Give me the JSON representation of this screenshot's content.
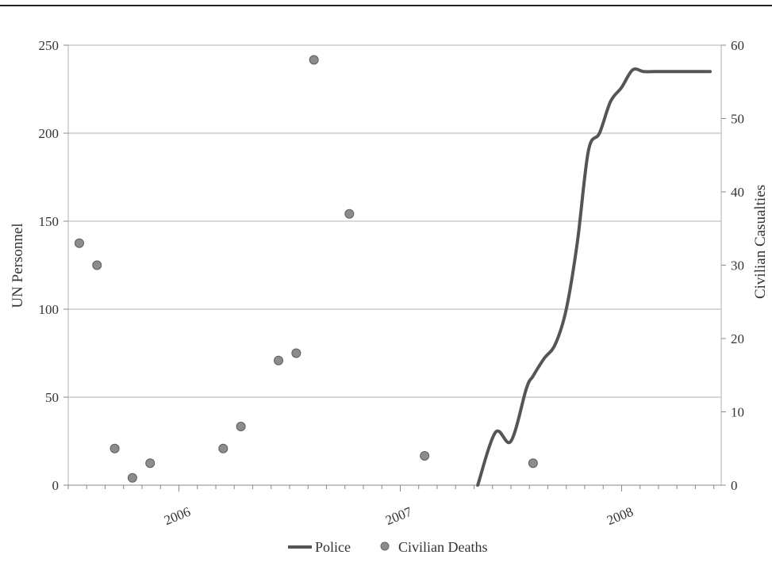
{
  "chart_data": {
    "type": "line",
    "y_left": {
      "label": "UN Personnel",
      "ylim": [
        0,
        250
      ],
      "ticks": [
        "0",
        "50",
        "100",
        "150",
        "200",
        "250"
      ]
    },
    "y_right": {
      "label": "Civilian Casualties",
      "ylim": [
        0,
        60
      ],
      "ticks": [
        "0",
        "10",
        "20",
        "30",
        "40",
        "50",
        "60"
      ]
    },
    "x": {
      "ticks": [
        {
          "label": "2006",
          "value": 2006.0
        },
        {
          "label": "2007",
          "value": 2007.0
        },
        {
          "label": "2008",
          "value": 2008.0
        }
      ],
      "xlim": [
        2005.5,
        2008.45
      ]
    },
    "grid": true,
    "legend_position": "bottom",
    "colors": {
      "line": "#555555",
      "marker": "#8c8c8c",
      "grid": "#b0b0b0"
    },
    "series": [
      {
        "name": "Police",
        "type": "line",
        "axis": "left",
        "x": [
          2007.35,
          2007.43,
          2007.5,
          2007.57,
          2007.6,
          2007.65,
          2007.7,
          2007.75,
          2007.8,
          2007.85,
          2007.9,
          2007.95,
          2008.0,
          2008.05,
          2008.1,
          2008.15,
          2008.2,
          2008.25,
          2008.3,
          2008.35,
          2008.4
        ],
        "values": [
          0,
          30,
          25,
          55,
          62,
          72,
          80,
          100,
          138,
          190,
          200,
          218,
          226,
          236,
          235,
          235,
          235,
          235,
          235,
          235,
          235
        ]
      },
      {
        "name": "Civilian Deaths",
        "type": "scatter",
        "axis": "right",
        "x": [
          2005.55,
          2005.63,
          2005.71,
          2005.79,
          2005.87,
          2006.2,
          2006.28,
          2006.45,
          2006.53,
          2006.61,
          2006.77,
          2007.11,
          2007.6
        ],
        "values": [
          33,
          30,
          5,
          1,
          3,
          5,
          8,
          17,
          18,
          58,
          37,
          4,
          3
        ]
      }
    ]
  }
}
